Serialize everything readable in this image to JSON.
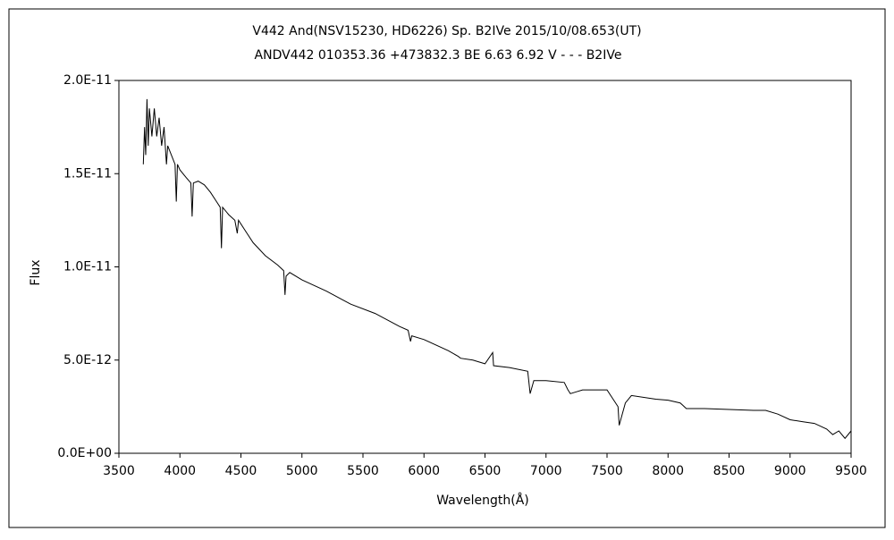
{
  "chart_data": {
    "type": "line",
    "title": "V442 And(NSV15230, HD6226)    Sp. B2IVe    2015/10/08.653(UT)",
    "subtitle": "ANDV442 010353.36 +473832.3 BE 6.63 6.92 V - - - B2IVe",
    "x_label": "Wavelength(Å)",
    "y_label": "Flux",
    "xlim": [
      3500,
      9500
    ],
    "xticks": [
      3500,
      4000,
      4500,
      5000,
      5500,
      6000,
      6500,
      7000,
      7500,
      8000,
      8500,
      9000,
      9500
    ],
    "ylim": [
      0,
      2e-11
    ],
    "yticks": [
      {
        "value": 0,
        "label": "0.0E+00"
      },
      {
        "value": 5e-12,
        "label": "5.0E-12"
      },
      {
        "value": 1e-11,
        "label": "1.0E-11"
      },
      {
        "value": 1.5e-11,
        "label": "1.5E-11"
      },
      {
        "value": 2e-11,
        "label": "2.0E-11"
      }
    ],
    "series": [
      {
        "name": "Flux",
        "color": "#000000",
        "x": [
          3700,
          3710,
          3720,
          3730,
          3740,
          3750,
          3770,
          3790,
          3810,
          3830,
          3850,
          3870,
          3890,
          3900,
          3930,
          3960,
          3970,
          3980,
          4000,
          4050,
          4090,
          4100,
          4110,
          4150,
          4200,
          4250,
          4300,
          4330,
          4340,
          4350,
          4400,
          4450,
          4470,
          4480,
          4550,
          4600,
          4700,
          4800,
          4850,
          4861,
          4870,
          4900,
          5000,
          5200,
          5400,
          5600,
          5800,
          5870,
          5890,
          5900,
          6000,
          6200,
          6280,
          6300,
          6400,
          6500,
          6563,
          6570,
          6700,
          6850,
          6870,
          6900,
          7000,
          7150,
          7180,
          7200,
          7250,
          7300,
          7500,
          7590,
          7600,
          7650,
          7700,
          7900,
          8000,
          8100,
          8150,
          8300,
          8500,
          8700,
          8800,
          8900,
          9000,
          9100,
          9200,
          9300,
          9350,
          9400,
          9450,
          9500
        ],
        "values": [
          1.55e-11,
          1.75e-11,
          1.6e-11,
          1.9e-11,
          1.65e-11,
          1.85e-11,
          1.7e-11,
          1.85e-11,
          1.7e-11,
          1.8e-11,
          1.65e-11,
          1.75e-11,
          1.55e-11,
          1.65e-11,
          1.6e-11,
          1.55e-11,
          1.35e-11,
          1.55e-11,
          1.52e-11,
          1.48e-11,
          1.45e-11,
          1.27e-11,
          1.45e-11,
          1.46e-11,
          1.44e-11,
          1.4e-11,
          1.35e-11,
          1.32e-11,
          1.1e-11,
          1.32e-11,
          1.28e-11,
          1.25e-11,
          1.18e-11,
          1.25e-11,
          1.18e-11,
          1.13e-11,
          1.06e-11,
          1.01e-11,
          9.8e-12,
          8.5e-12,
          9.5e-12,
          9.7e-12,
          9.3e-12,
          8.7e-12,
          8e-12,
          7.5e-12,
          6.8e-12,
          6.6e-12,
          6e-12,
          6.3e-12,
          6.1e-12,
          5.5e-12,
          5.2e-12,
          5.1e-12,
          5e-12,
          4.8e-12,
          5.4e-12,
          4.7e-12,
          4.6e-12,
          4.4e-12,
          3.2e-12,
          3.9e-12,
          3.9e-12,
          3.8e-12,
          3.4e-12,
          3.2e-12,
          3.3e-12,
          3.4e-12,
          3.4e-12,
          2.5e-12,
          1.5e-12,
          2.7e-12,
          3.1e-12,
          2.9e-12,
          2.85e-12,
          2.7e-12,
          2.4e-12,
          2.4e-12,
          2.35e-12,
          2.3e-12,
          2.3e-12,
          2.1e-12,
          1.8e-12,
          1.7e-12,
          1.6e-12,
          1.3e-12,
          1e-12,
          1.2e-12,
          8e-13,
          1.2e-12
        ]
      }
    ]
  }
}
